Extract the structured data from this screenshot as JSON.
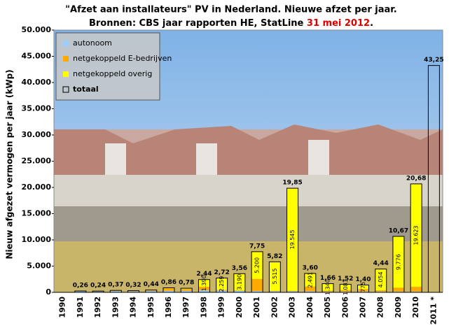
{
  "chart_data": {
    "type": "stacked_bar",
    "title": "\"Afzet aan installateurs\" PV in Nederland. Nieuwe afzet per jaar.",
    "subtitle": "Bronnen: CBS jaar rapporten HE, StatLine",
    "subtitle_date": "31 mei 2012",
    "subtitle_end": ".",
    "y_label": "Nieuw afgezet vermogen per jaar (kWp)",
    "categories": [
      "1990",
      "1991",
      "1992",
      "1993",
      "1994",
      "1995",
      "1996",
      "1997",
      "1998",
      "1999",
      "2000",
      "2001",
      "2002",
      "2003",
      "2004",
      "2005",
      "2006",
      "2007",
      "2008",
      "2009",
      "2010",
      "2011 *"
    ],
    "series": [
      {
        "name": "autonoom",
        "color": "#99ccff",
        "values": [
          0,
          200,
          180,
          250,
          200,
          250,
          300,
          300,
          400,
          350,
          300,
          250,
          200,
          200,
          200,
          150,
          150,
          150,
          150,
          150,
          150,
          null
        ]
      },
      {
        "name": "netgekoppeld E-bedrijven",
        "color": "#ffaa00",
        "values": [
          0,
          30,
          30,
          70,
          70,
          120,
          460,
          330,
          650,
          111,
          70,
          2300,
          105,
          105,
          909,
          170,
          287,
          475,
          236,
          744,
          907,
          null
        ]
      },
      {
        "name": "netgekoppeld overig",
        "color": "#ffff00",
        "values": [
          0,
          30,
          30,
          50,
          50,
          70,
          100,
          150,
          1390,
          2259,
          3190,
          5200,
          5515,
          19545,
          2491,
          1340,
          1083,
          775,
          4054,
          9776,
          19623,
          null
        ],
        "value_labels": [
          null,
          null,
          null,
          null,
          null,
          null,
          null,
          null,
          "1.390",
          "2.259",
          "3.190",
          "5.200",
          "5.515",
          "19.545",
          "2.491",
          "1.340",
          "1.083",
          "775",
          "4.054",
          "9.776",
          "19.623",
          null
        ]
      },
      {
        "name": "totaal",
        "color": "#000000",
        "values": [
          null,
          260,
          240,
          370,
          320,
          440,
          860,
          780,
          2440,
          2720,
          3560,
          7750,
          5820,
          19850,
          3600,
          1660,
          1520,
          1400,
          4440,
          10670,
          20680,
          43250
        ],
        "value_labels": [
          null,
          "0,26",
          "0,24",
          "0,37",
          "0,32",
          "0,44",
          "0,86",
          "0,78",
          "2,44",
          "2,72",
          "3,56",
          "7,75",
          "5,82",
          "19,85",
          "3,60",
          "1,66",
          "1,52",
          "1,40",
          "4,44",
          "10,67",
          "20,68",
          "43,25"
        ]
      }
    ],
    "ylim": [
      0,
      50000
    ],
    "yticks": [
      0,
      {
        "value": 5000,
        "label": "5.000"
      },
      {
        "value": 10000,
        "label": "10.000"
      },
      {
        "value": 15000,
        "label": "15.000"
      },
      {
        "value": 20000,
        "label": "20.000"
      },
      {
        "value": 25000,
        "label": "25.000"
      },
      {
        "value": 30000,
        "label": "30.000"
      },
      {
        "value": 35000,
        "label": "35.000"
      },
      {
        "value": 40000,
        "label": "40.000"
      },
      {
        "value": 45000,
        "label": "45.000"
      },
      {
        "value": 50000,
        "label": "50.000"
      }
    ],
    "legend": "upper left"
  }
}
